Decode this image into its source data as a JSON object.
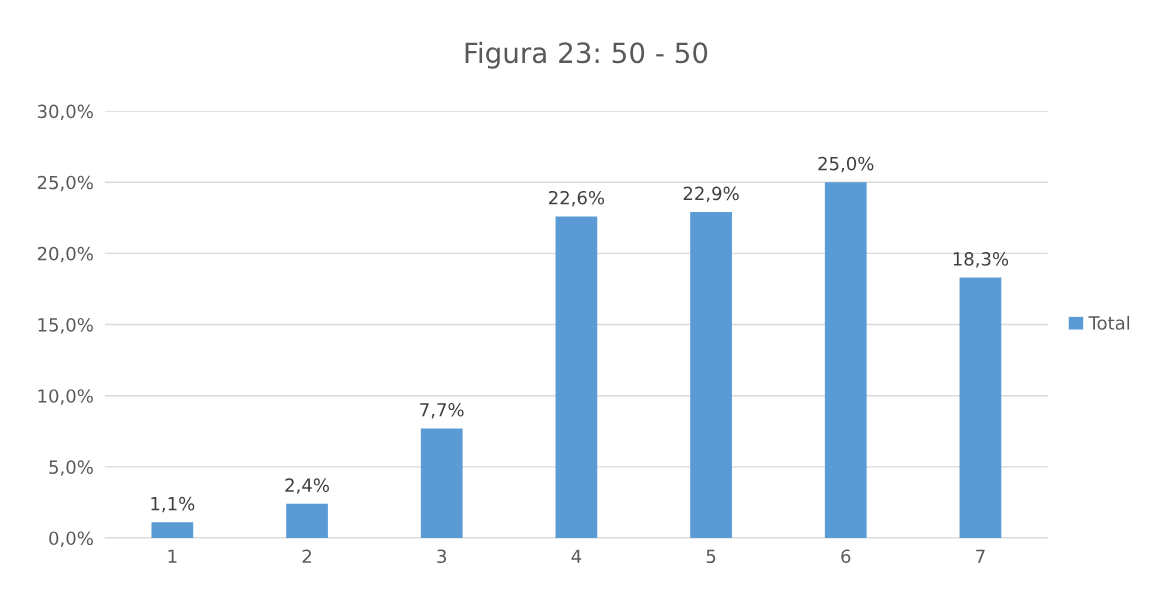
{
  "chart_data": {
    "type": "bar",
    "title": "Figura 23: 50 - 50",
    "categories": [
      "1",
      "2",
      "3",
      "4",
      "5",
      "6",
      "7"
    ],
    "series": [
      {
        "name": "Total",
        "color": "#5b9bd5",
        "values": [
          1.1,
          2.4,
          7.7,
          22.6,
          22.9,
          25.0,
          18.3
        ],
        "value_labels": [
          "1,1%",
          "2,4%",
          "7,7%",
          "22,6%",
          "22,9%",
          "25,0%",
          "18,3%"
        ]
      }
    ],
    "ylim": [
      0,
      30
    ],
    "yticks": [
      {
        "value": 0,
        "label": "0,0%"
      },
      {
        "value": 5,
        "label": "5,0%"
      },
      {
        "value": 10,
        "label": "10,0%"
      },
      {
        "value": 15,
        "label": "15,0%"
      },
      {
        "value": 20,
        "label": "20,0%"
      },
      {
        "value": 25,
        "label": "25,0%"
      },
      {
        "value": 30,
        "label": "30,0%"
      }
    ],
    "grid": "y",
    "legend": "right"
  }
}
